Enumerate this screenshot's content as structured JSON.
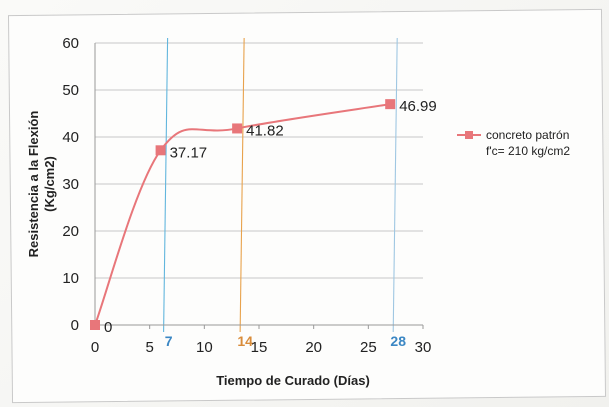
{
  "chart_data": {
    "type": "line",
    "title": "",
    "xlabel": "Tiempo de Curado (Días)",
    "ylabel_line1": "Resistencia a la Flexión",
    "ylabel_line2": "(Kg/cm2)",
    "xlim": [
      0,
      30
    ],
    "ylim": [
      0,
      60
    ],
    "x_ticks": [
      0,
      5,
      10,
      15,
      20,
      25,
      30
    ],
    "y_ticks": [
      0,
      10,
      20,
      30,
      40,
      50,
      60
    ],
    "grid": "horizontal",
    "legend_position": "right",
    "series": [
      {
        "name_line1": "concreto patrón",
        "name_line2": "f'c= 210 kg/cm2",
        "color": "#e8767a",
        "x": [
          0,
          6,
          13,
          27
        ],
        "y": [
          0,
          37.17,
          41.82,
          46.99
        ],
        "labels": [
          "0",
          "37.17",
          "41.82",
          "46.99"
        ]
      }
    ],
    "reference_lines": [
      {
        "x": 6,
        "label": "7",
        "color": "#62b6dd"
      },
      {
        "x": 13,
        "label": "14",
        "color": "#e8a24c"
      },
      {
        "x": 27,
        "label": "28",
        "color": "#9fc7e2"
      }
    ]
  }
}
